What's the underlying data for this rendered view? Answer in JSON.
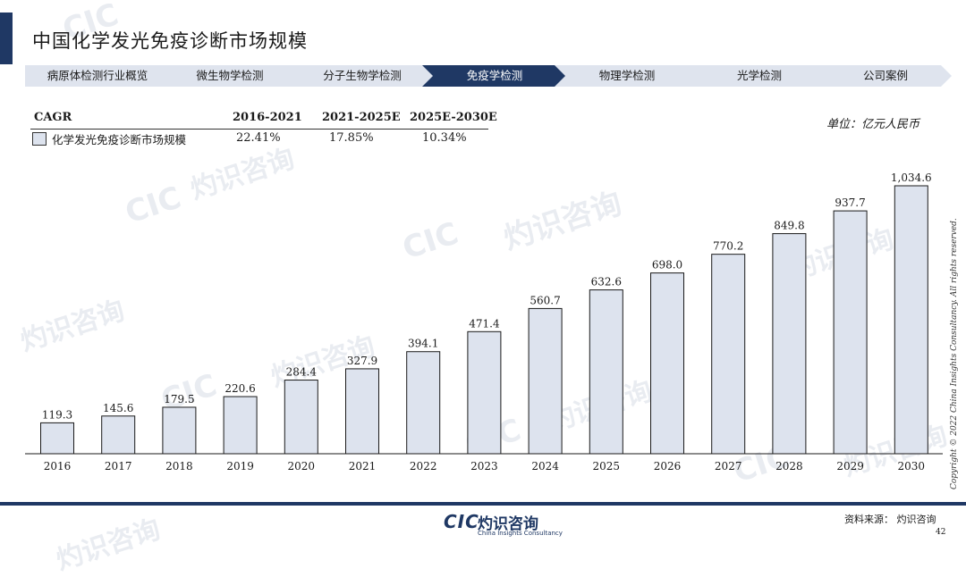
{
  "page": {
    "title": "中国化学发光免疫诊断市场规模",
    "unit": "单位：亿元人民币",
    "copyright": "Copyright © 2022 China Insights Consultancy. All rights reserved.",
    "source": "资料来源：  灼识咨询",
    "page_number": "42",
    "logo_mark": "CIC",
    "logo_cn": "灼识咨询",
    "logo_en": "China Insights Consultancy",
    "watermark_cn": "灼识咨询",
    "watermark_en": "China Insights Consultancy",
    "watermark_mark": "CIC"
  },
  "nav": {
    "items": [
      {
        "label": "病原体检测行业概览",
        "active": false
      },
      {
        "label": "微生物学检测",
        "active": false
      },
      {
        "label": "分子生物学检测",
        "active": false
      },
      {
        "label": "免疫学检测",
        "active": true
      },
      {
        "label": "物理学检测",
        "active": false
      },
      {
        "label": "光学检测",
        "active": false
      },
      {
        "label": "公司案例",
        "active": false
      }
    ],
    "colors": {
      "inactive": "#dfe4ee",
      "active": "#1f3864",
      "active_text": "#ffffff"
    }
  },
  "cagr": {
    "header_label": "CAGR",
    "periods": [
      "2016-2021",
      "2021-2025E",
      "2025E-2030E"
    ],
    "row_label": "化学发光免疫诊断市场规模",
    "values": [
      "22.41%",
      "17.85%",
      "10.34%"
    ]
  },
  "chart_data": {
    "type": "bar",
    "title": "",
    "xlabel": "",
    "ylabel": "",
    "categories": [
      "2016",
      "2017",
      "2018",
      "2019",
      "2020",
      "2021",
      "2022",
      "2023",
      "2024",
      "2025",
      "2026",
      "2027",
      "2028",
      "2029",
      "2030"
    ],
    "series": [
      {
        "name": "化学发光免疫诊断市场规模",
        "values": [
          119.3,
          145.6,
          179.5,
          220.6,
          284.4,
          327.9,
          394.1,
          471.4,
          560.7,
          632.6,
          698.0,
          770.2,
          849.8,
          937.7,
          1034.6
        ],
        "labels": [
          "119.3",
          "145.6",
          "179.5",
          "220.6",
          "284.4",
          "327.9",
          "394.1",
          "471.4",
          "560.7",
          "632.6",
          "698.0",
          "770.2",
          "849.8",
          "937.7",
          "1,034.6"
        ]
      }
    ],
    "ylim": [
      0,
      1034.6
    ],
    "grid": false,
    "legend": "top-left",
    "colors": {
      "bar_fill": "#dde3ee",
      "bar_stroke": "#1a1a1a",
      "axis": "#1a1a1a"
    }
  }
}
